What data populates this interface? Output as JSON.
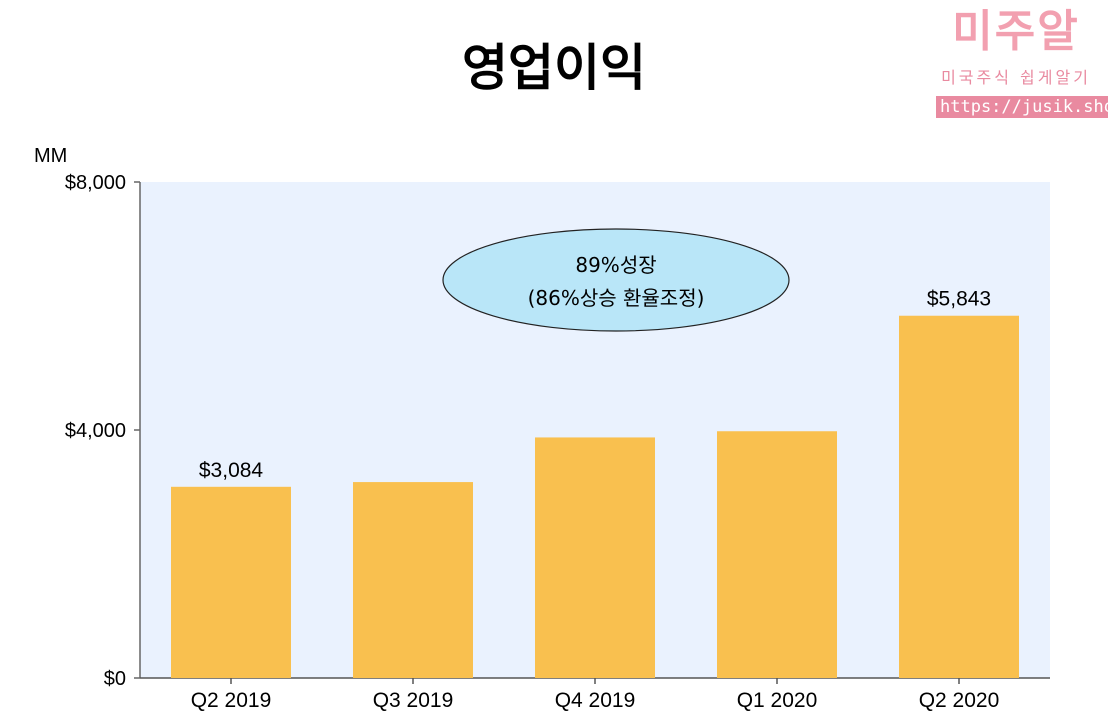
{
  "logo": {
    "main": "미주알",
    "sub": "미국주식 쉽게알기",
    "url": "https://jusik.shop"
  },
  "chart_data": {
    "type": "bar",
    "title": "영업이익",
    "unit_label": "MM",
    "categories": [
      "Q2 2019",
      "Q3 2019",
      "Q4 2019",
      "Q1 2020",
      "Q2 2020"
    ],
    "values": [
      3084,
      3160,
      3880,
      3980,
      5843
    ],
    "data_labels": [
      "$3,084",
      "",
      "",
      "",
      "$5,843"
    ],
    "ylim": [
      0,
      8000
    ],
    "yticks": [
      0,
      4000,
      8000
    ],
    "ytick_labels": [
      "$0",
      "$4,000",
      "$8,000"
    ],
    "bar_color": "#f9c04f",
    "plot_bg": "#eaf2fe",
    "annotation": {
      "line1": "89%성장",
      "line2": "(86%상승 환율조정)",
      "fill": "#b9e6f8"
    }
  }
}
